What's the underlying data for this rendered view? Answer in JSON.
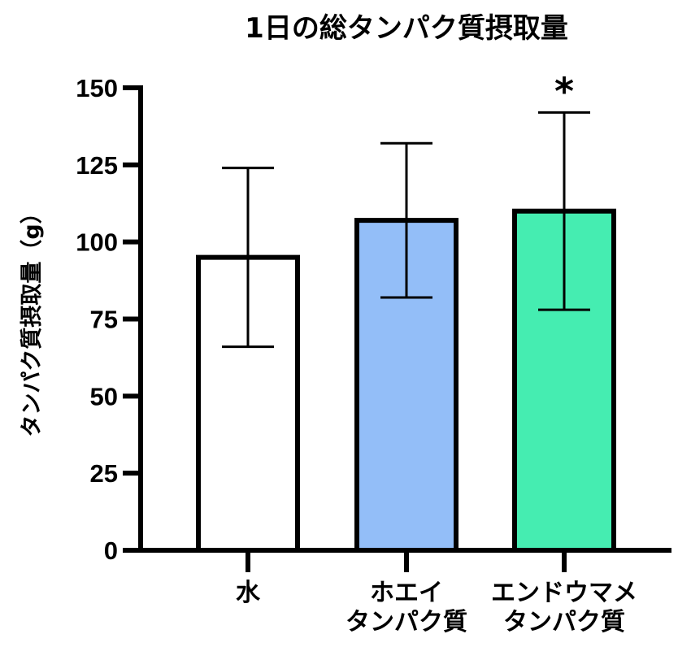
{
  "chart_data": {
    "type": "bar",
    "title": "1日の総タンパク質摂取量",
    "ylabel": "タンパク質摂取量（g）",
    "xlabel": "",
    "ylim": [
      0,
      150
    ],
    "yticks": [
      "0",
      "25",
      "50",
      "75",
      "100",
      "125",
      "150"
    ],
    "categories": [
      {
        "lines": [
          "水"
        ]
      },
      {
        "lines": [
          "ホエイ",
          "タンパク質"
        ]
      },
      {
        "lines": [
          "エンドウマメ",
          "タンパク質"
        ]
      }
    ],
    "values": [
      95,
      107,
      110
    ],
    "error_low": [
      66,
      82,
      78
    ],
    "error_high": [
      124,
      132,
      142
    ],
    "colors": [
      "#ffffff",
      "#93bef8",
      "#45edb1"
    ],
    "significance": [
      "",
      "",
      "*"
    ]
  }
}
